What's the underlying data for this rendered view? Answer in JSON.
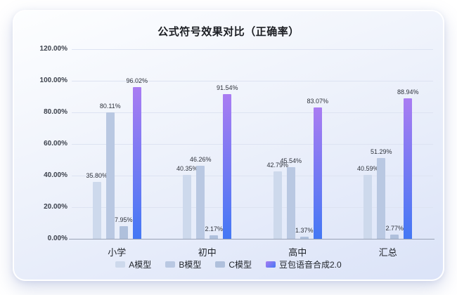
{
  "page": {
    "background": "#ffffff"
  },
  "chart_data": {
    "type": "bar",
    "title": "公式符号效果对比（正确率）",
    "categories": [
      "小学",
      "初中",
      "高中",
      "汇总"
    ],
    "series": [
      {
        "name": "A模型",
        "color": "#cdd9ec",
        "values": [
          35.8,
          40.35,
          42.79,
          40.59
        ]
      },
      {
        "name": "B模型",
        "color": "#b9c8e2",
        "values": [
          80.11,
          46.26,
          45.54,
          51.29
        ]
      },
      {
        "name": "C模型",
        "color": "#afc0dc",
        "values": [
          7.95,
          2.17,
          1.37,
          2.77
        ]
      },
      {
        "name": "豆包语音合成2.0",
        "gradient": [
          "#a97cf2",
          "#4478f4"
        ],
        "values": [
          96.02,
          91.54,
          83.07,
          88.94
        ]
      }
    ],
    "value_suffix": "%",
    "y_ticks": [
      120,
      100,
      80,
      60,
      40,
      20,
      0
    ],
    "y_tick_labels": [
      "120.00%",
      "100.00%",
      "80.00%",
      "60.00%",
      "40.00%",
      "20.00%",
      "0.00%"
    ],
    "ylim": [
      0,
      120
    ],
    "grid": true,
    "legend_position": "bottom",
    "colors": {
      "axis_line": "#99a2b6",
      "grid_line": "#dde3f2"
    }
  }
}
